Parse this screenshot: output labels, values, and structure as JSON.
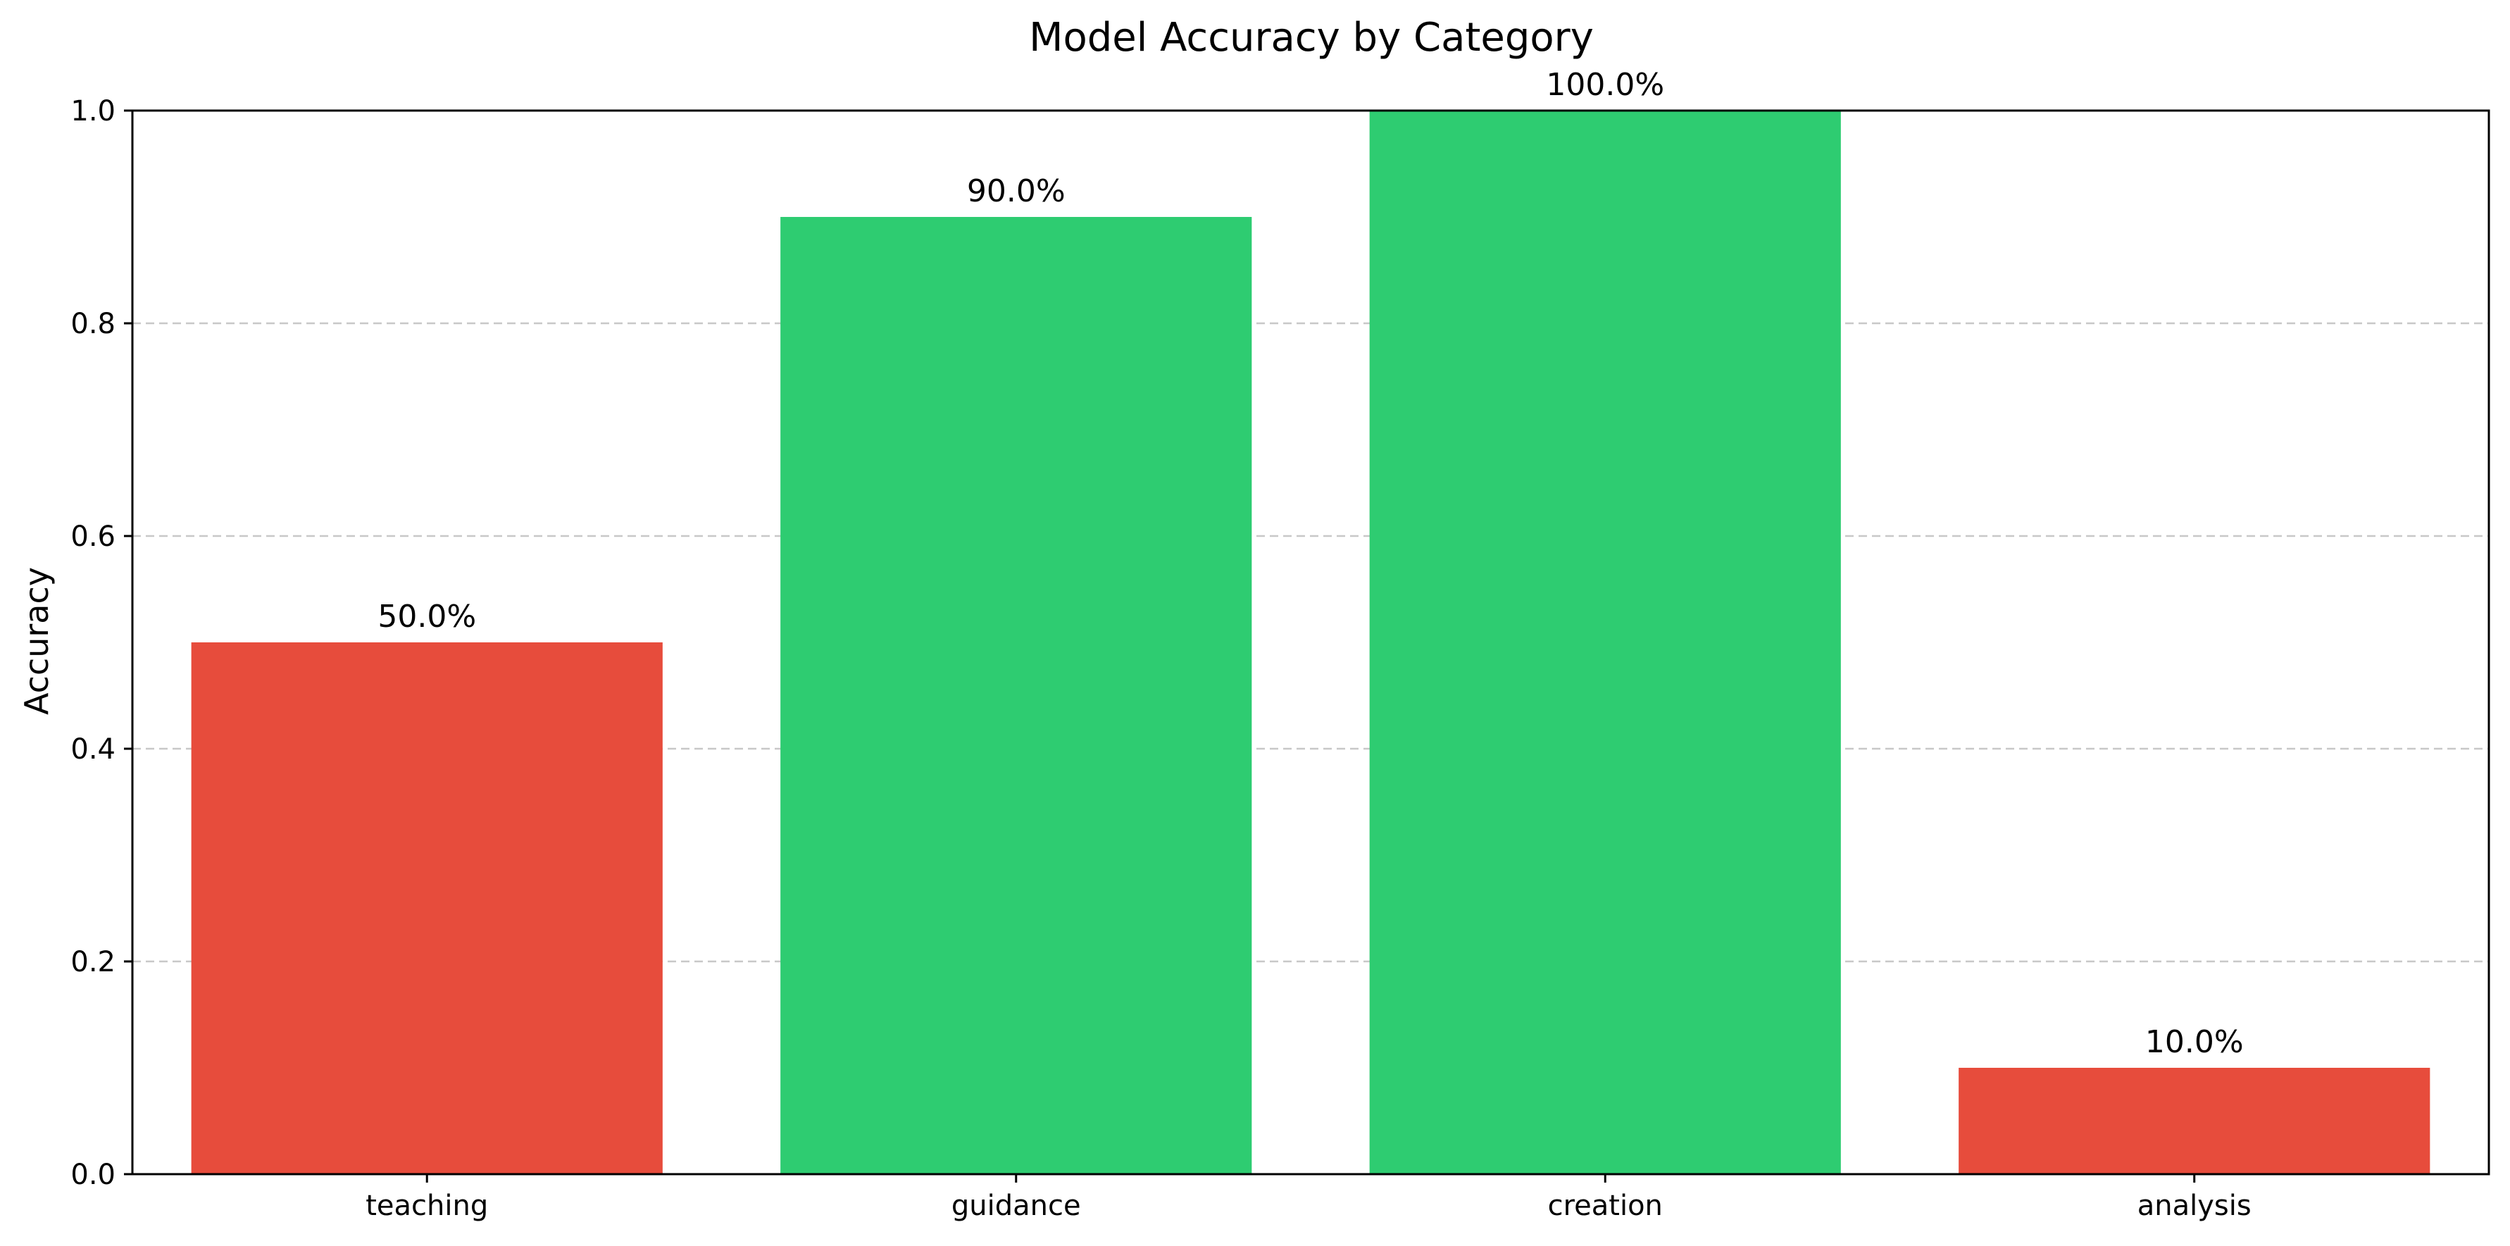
{
  "chart_data": {
    "type": "bar",
    "title": "Model Accuracy by Category",
    "xlabel": "",
    "ylabel": "Accuracy",
    "categories": [
      "teaching",
      "guidance",
      "creation",
      "analysis"
    ],
    "values": [
      0.5,
      0.9,
      1.0,
      0.1
    ],
    "data_labels": [
      "50.0%",
      "90.0%",
      "100.0%",
      "10.0%"
    ],
    "bar_colors": [
      "#e74c3c",
      "#2ecc71",
      "#2ecc71",
      "#e74c3c"
    ],
    "ylim": [
      0.0,
      1.0
    ],
    "yticks": [
      0.0,
      0.2,
      0.4,
      0.6,
      0.8,
      1.0
    ],
    "ytick_labels": [
      "0.0",
      "0.2",
      "0.4",
      "0.6",
      "0.8",
      "1.0"
    ],
    "grid": "y-dashed",
    "grid_color": "#c8c8c8",
    "legend": "none"
  }
}
